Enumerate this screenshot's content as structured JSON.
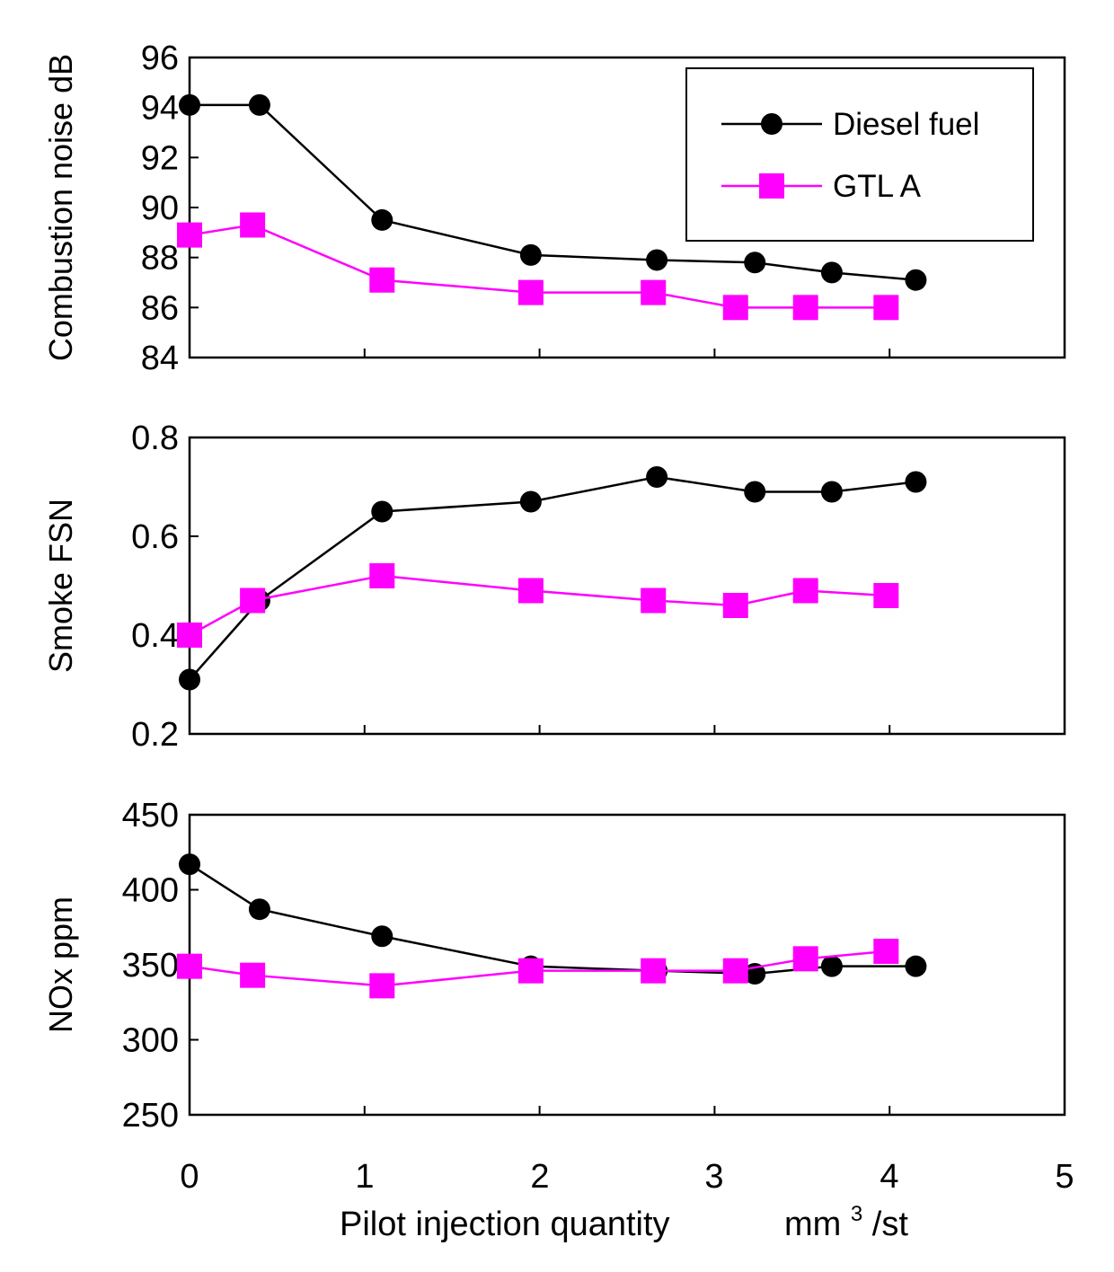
{
  "legend": {
    "entries": [
      {
        "label": "Diesel fuel",
        "color": "#000000",
        "marker": "circle"
      },
      {
        "label": "GTL A",
        "color": "#ff00ff",
        "marker": "square"
      }
    ],
    "placement": "top-right of top panel"
  },
  "x_axis": {
    "label_main": "Pilot injection quantity",
    "label_unit_prefix": "mm",
    "label_unit_sup": "3",
    "label_unit_suffix": "/st",
    "range": [
      0,
      5
    ],
    "ticks": [
      "0",
      "1",
      "2",
      "3",
      "4",
      "5"
    ]
  },
  "chart_data": [
    {
      "type": "line",
      "ylabel": "Combustion noise  dB",
      "ylim": [
        84,
        96
      ],
      "yticks": [
        "84",
        "86",
        "88",
        "90",
        "92",
        "94",
        "96"
      ],
      "xlim": [
        0,
        5
      ],
      "grid": false,
      "series": [
        {
          "name": "Diesel fuel",
          "color": "#000000",
          "marker": "circle",
          "x": [
            0,
            0.4,
            1.1,
            1.95,
            2.67,
            3.23,
            3.67,
            4.15
          ],
          "y": [
            94.1,
            94.1,
            89.5,
            88.1,
            87.9,
            87.8,
            87.4,
            87.1
          ]
        },
        {
          "name": "GTL A",
          "color": "#ff00ff",
          "marker": "square",
          "x": [
            0,
            0.36,
            1.1,
            1.95,
            2.65,
            3.12,
            3.52,
            3.98
          ],
          "y": [
            88.9,
            89.3,
            87.1,
            86.6,
            86.6,
            86.0,
            86.0,
            86.0
          ]
        }
      ]
    },
    {
      "type": "line",
      "ylabel": "Smoke  FSN",
      "ylim": [
        0.2,
        0.8
      ],
      "yticks": [
        "0.2",
        "0.4",
        "0.6",
        "0.8"
      ],
      "xlim": [
        0,
        5
      ],
      "grid": false,
      "series": [
        {
          "name": "Diesel fuel",
          "color": "#000000",
          "marker": "circle",
          "x": [
            0,
            0.4,
            1.1,
            1.95,
            2.67,
            3.23,
            3.67,
            4.15
          ],
          "y": [
            0.31,
            0.47,
            0.65,
            0.67,
            0.72,
            0.69,
            0.69,
            0.71
          ]
        },
        {
          "name": "GTL A",
          "color": "#ff00ff",
          "marker": "square",
          "x": [
            0,
            0.36,
            1.1,
            1.95,
            2.65,
            3.12,
            3.52,
            3.98
          ],
          "y": [
            0.4,
            0.47,
            0.52,
            0.49,
            0.47,
            0.46,
            0.49,
            0.48
          ]
        }
      ]
    },
    {
      "type": "line",
      "ylabel": "NOx   ppm",
      "ylim": [
        250,
        450
      ],
      "yticks": [
        "250",
        "300",
        "350",
        "400",
        "450"
      ],
      "xlim": [
        0,
        5
      ],
      "grid": false,
      "series": [
        {
          "name": "Diesel fuel",
          "color": "#000000",
          "marker": "circle",
          "x": [
            0,
            0.4,
            1.1,
            1.95,
            2.67,
            3.23,
            3.67,
            4.15
          ],
          "y": [
            417,
            387,
            369,
            349,
            346,
            344,
            349,
            349
          ]
        },
        {
          "name": "GTL A",
          "color": "#ff00ff",
          "marker": "square",
          "x": [
            0,
            0.36,
            1.1,
            1.95,
            2.65,
            3.12,
            3.52,
            3.98
          ],
          "y": [
            349,
            343,
            336,
            346,
            346,
            346,
            354,
            359
          ]
        }
      ]
    }
  ]
}
